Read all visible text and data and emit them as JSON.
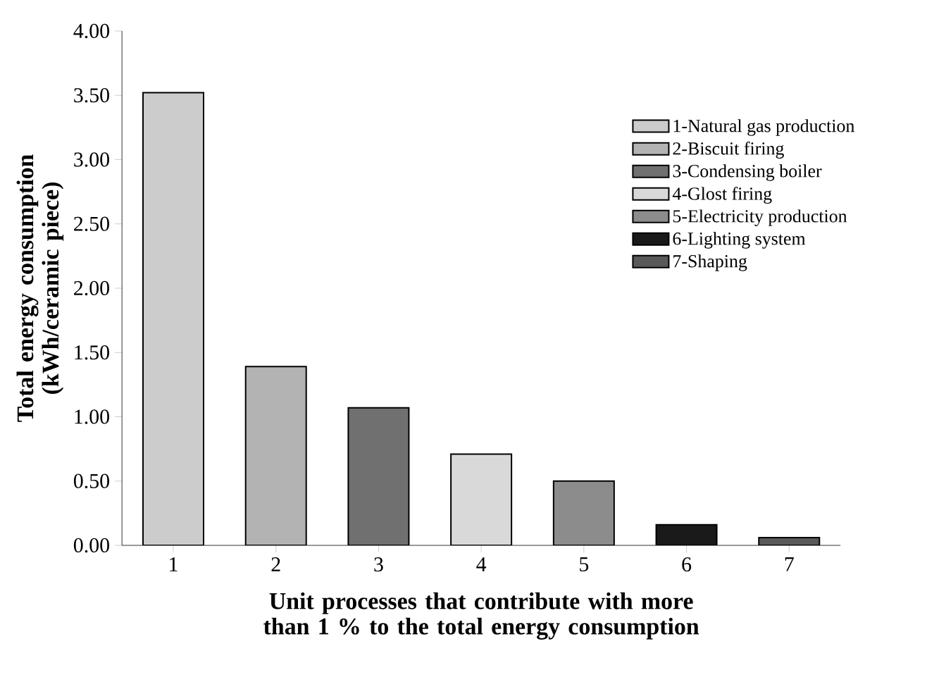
{
  "chart_data": {
    "type": "bar",
    "xlabel": "Unit processes that contribute with more than 1 % to the total energy consumption",
    "ylabel": "Total energy consumption (kWh/ceramic piece)",
    "categories": [
      "1",
      "2",
      "3",
      "4",
      "5",
      "6",
      "7"
    ],
    "series": [
      {
        "name": "1-Natural gas production",
        "color": "#cccccc",
        "values": [
          3.52,
          null,
          null,
          null,
          null,
          null,
          null
        ]
      },
      {
        "name": "2-Biscuit firing",
        "color": "#b3b3b3",
        "values": [
          null,
          1.39,
          null,
          null,
          null,
          null,
          null
        ]
      },
      {
        "name": "3-Condensing boiler",
        "color": "#707070",
        "values": [
          null,
          null,
          1.07,
          null,
          null,
          null,
          null
        ]
      },
      {
        "name": "4-Glost firing",
        "color": "#d9d9d9",
        "values": [
          null,
          null,
          null,
          0.71,
          null,
          null,
          null
        ]
      },
      {
        "name": "5-Electricity production",
        "color": "#8c8c8c",
        "values": [
          null,
          null,
          null,
          null,
          0.5,
          null,
          null
        ]
      },
      {
        "name": "6-Lighting system",
        "color": "#1a1a1a",
        "values": [
          null,
          null,
          null,
          null,
          null,
          0.16,
          null
        ]
      },
      {
        "name": "7-Shaping",
        "color": "#595959",
        "values": [
          null,
          null,
          null,
          null,
          null,
          null,
          0.06
        ]
      }
    ],
    "ylim": [
      0,
      4
    ],
    "yticks": [
      {
        "value": 0,
        "label": "0.00"
      },
      {
        "value": 0.5,
        "label": "0.50"
      },
      {
        "value": 1,
        "label": "1.00"
      },
      {
        "value": 1.5,
        "label": "1.50"
      },
      {
        "value": 2,
        "label": "2.00"
      },
      {
        "value": 2.5,
        "label": "2.50"
      },
      {
        "value": 3,
        "label": "3.00"
      },
      {
        "value": 3.5,
        "label": "3.50"
      },
      {
        "value": 4,
        "label": "4.00"
      }
    ],
    "legend": "top right",
    "grid": false
  }
}
